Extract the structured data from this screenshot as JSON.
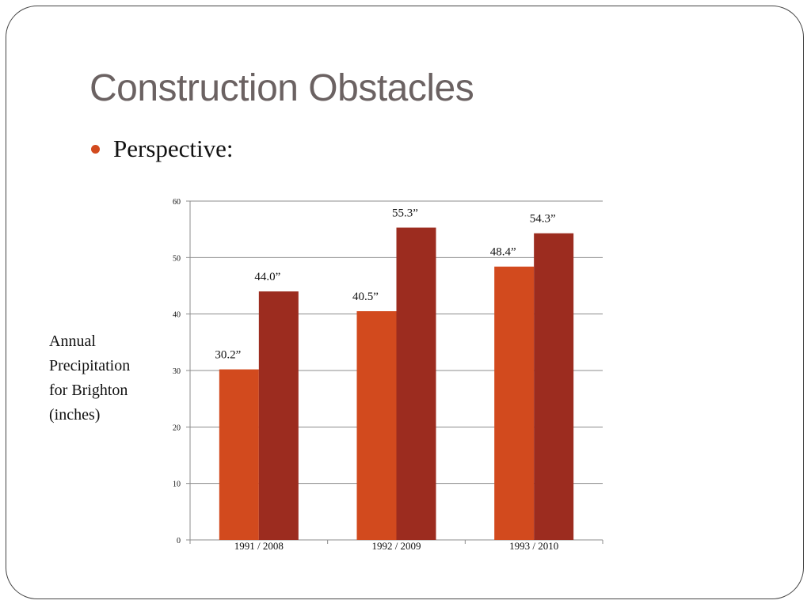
{
  "slide": {
    "title": "Construction Obstacles",
    "bullet": "Perspective:",
    "y_axis_label": "Annual Precipitation for Brighton (inches)"
  },
  "colors": {
    "title": "#6b6262",
    "bullet": "#d24a1e",
    "series_a": "#d24a1e",
    "series_b": "#9c2c1f",
    "gridline": "#8c8c8c"
  },
  "chart_data": {
    "type": "bar",
    "categories": [
      "1991 / 2008",
      "1992 / 2009",
      "1993 / 2010"
    ],
    "series": [
      {
        "values": [
          30.2,
          40.5,
          48.4
        ],
        "labels": [
          "30.2”",
          "40.5”",
          "48.4”"
        ]
      },
      {
        "values": [
          44.0,
          55.3,
          54.3
        ],
        "labels": [
          "44.0”",
          "55.3”",
          "54.3”"
        ]
      }
    ],
    "title": "",
    "xlabel": "",
    "ylabel": "Annual Precipitation for Brighton (inches)",
    "ylim": [
      0,
      60
    ],
    "yticks": [
      0,
      10,
      20,
      30,
      40,
      50,
      60
    ],
    "grid": true,
    "legend": "none"
  }
}
